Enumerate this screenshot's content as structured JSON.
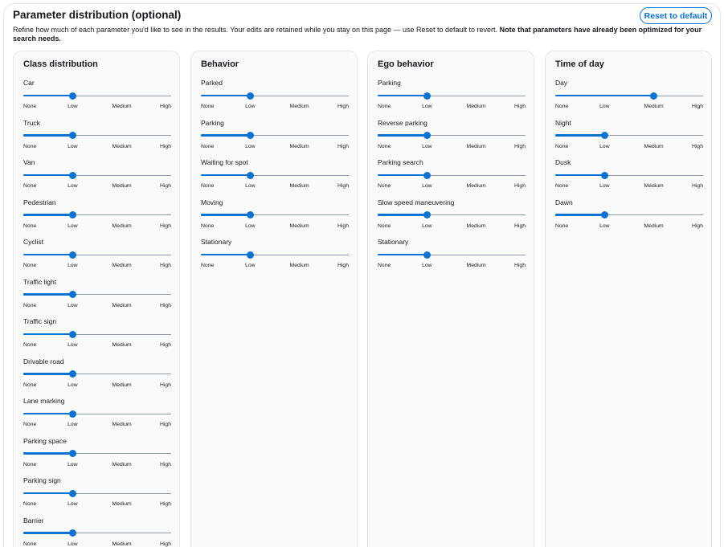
{
  "header": {
    "title": "Parameter distribution (optional)",
    "reset_label": "Reset to default",
    "description_plain": "Refine how much of each parameter you'd like to see in the results. Your edits are retained while you stay on this page — use Reset to default to revert.",
    "description_bold": "Note that parameters have already been optimized for your search needs."
  },
  "tick_labels": [
    "None",
    "Low",
    "Medium",
    "High"
  ],
  "colors": {
    "accent": "#0972d3",
    "track": "#8d99a8",
    "border": "#e3e6ea",
    "panel": "#fafafa"
  },
  "columns": [
    {
      "title": "Class distribution",
      "params": [
        {
          "label": "Car",
          "level": "Low"
        },
        {
          "label": "Truck",
          "level": "Low"
        },
        {
          "label": "Van",
          "level": "Low"
        },
        {
          "label": "Pedestrian",
          "level": "Low"
        },
        {
          "label": "Cyclist",
          "level": "Low"
        },
        {
          "label": "Traffic light",
          "level": "Low"
        },
        {
          "label": "Traffic sign",
          "level": "Low"
        },
        {
          "label": "Drivable road",
          "level": "Low"
        },
        {
          "label": "Lane marking",
          "level": "Low"
        },
        {
          "label": "Parking space",
          "level": "Low"
        },
        {
          "label": "Parking sign",
          "level": "Low"
        },
        {
          "label": "Barrier",
          "level": "Low"
        }
      ]
    },
    {
      "title": "Behavior",
      "params": [
        {
          "label": "Parked",
          "level": "Low"
        },
        {
          "label": "Parking",
          "level": "Low"
        },
        {
          "label": "Waiting for spot",
          "level": "Low"
        },
        {
          "label": "Moving",
          "level": "Low"
        },
        {
          "label": "Stationary",
          "level": "Low"
        }
      ]
    },
    {
      "title": "Ego behavior",
      "params": [
        {
          "label": "Parking",
          "level": "Low"
        },
        {
          "label": "Reverse parking",
          "level": "Low"
        },
        {
          "label": "Parking search",
          "level": "Low"
        },
        {
          "label": "Slow speed maneuvering",
          "level": "Low"
        },
        {
          "label": "Stationary",
          "level": "Low"
        }
      ]
    },
    {
      "title": "Time of day",
      "params": [
        {
          "label": "Day",
          "level": "Medium"
        },
        {
          "label": "Night",
          "level": "Low"
        },
        {
          "label": "Dusk",
          "level": "Low"
        },
        {
          "label": "Dawn",
          "level": "Low"
        }
      ]
    }
  ]
}
